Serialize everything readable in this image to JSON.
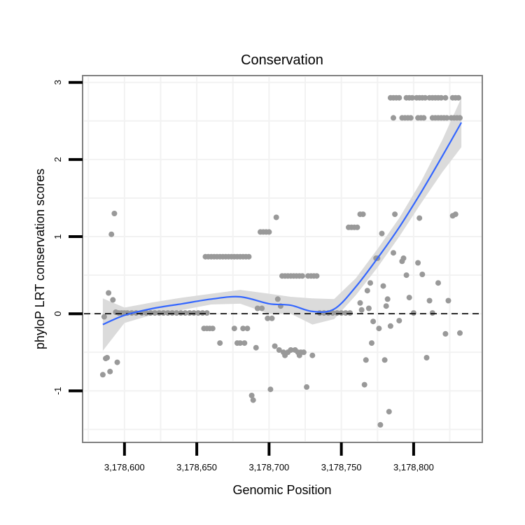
{
  "chart_data": {
    "type": "scatter",
    "title": "Conservation",
    "xlabel": "Genomic Position",
    "ylabel": "phyloP LRT conservation scores",
    "xlim": [
      3178572,
      3178847
    ],
    "ylim": [
      -1.65,
      3.07
    ],
    "x_ticks": [
      3178600,
      3178650,
      3178700,
      3178750,
      3178800
    ],
    "x_tick_labels": [
      "3,178,600",
      "3,178,650",
      "3,178,700",
      "3,178,750",
      "3,178,800"
    ],
    "y_ticks": [
      -1,
      0,
      1,
      2,
      3
    ],
    "y_tick_labels": [
      "-1",
      "0",
      "1",
      "2",
      "3"
    ],
    "reference_line": {
      "y": 0,
      "style": "dashed",
      "color": "#000000"
    },
    "colors": {
      "points": "#999999",
      "smooth": "#3366ff",
      "ribbon": "#d9d9d9",
      "panel_border": "#808080",
      "grid": "#f2f2f2"
    },
    "points": [
      [
        3178585,
        -0.79
      ],
      [
        3178586,
        -0.04
      ],
      [
        3178587,
        -0.58
      ],
      [
        3178588,
        -0.57
      ],
      [
        3178589,
        0.27
      ],
      [
        3178590,
        -0.75
      ],
      [
        3178591,
        1.03
      ],
      [
        3178592,
        0.18
      ],
      [
        3178593,
        1.3
      ],
      [
        3178594,
        0.02
      ],
      [
        3178595,
        -0.63
      ],
      [
        3178596,
        0.01
      ],
      [
        3178598,
        0.01
      ],
      [
        3178600,
        0.01
      ],
      [
        3178602,
        0.01
      ],
      [
        3178605,
        0.01
      ],
      [
        3178608,
        0.01
      ],
      [
        3178612,
        0.01
      ],
      [
        3178615,
        0.01
      ],
      [
        3178618,
        0.01
      ],
      [
        3178621,
        0.01
      ],
      [
        3178624,
        0.01
      ],
      [
        3178627,
        0.01
      ],
      [
        3178630,
        0.01
      ],
      [
        3178633,
        0.01
      ],
      [
        3178636,
        0.01
      ],
      [
        3178639,
        0.01
      ],
      [
        3178642,
        0.01
      ],
      [
        3178645,
        0.01
      ],
      [
        3178648,
        0.01
      ],
      [
        3178651,
        0.01
      ],
      [
        3178654,
        0.01
      ],
      [
        3178657,
        0.01
      ],
      [
        3178655,
        -0.19
      ],
      [
        3178657,
        -0.19
      ],
      [
        3178659,
        -0.19
      ],
      [
        3178661,
        -0.19
      ],
      [
        3178666,
        -0.38
      ],
      [
        3178656,
        0.74
      ],
      [
        3178658,
        0.74
      ],
      [
        3178660,
        0.74
      ],
      [
        3178662,
        0.74
      ],
      [
        3178664,
        0.74
      ],
      [
        3178666,
        0.74
      ],
      [
        3178668,
        0.74
      ],
      [
        3178670,
        0.74
      ],
      [
        3178672,
        0.74
      ],
      [
        3178674,
        0.74
      ],
      [
        3178676,
        0.74
      ],
      [
        3178678,
        0.74
      ],
      [
        3178680,
        0.74
      ],
      [
        3178682,
        0.74
      ],
      [
        3178684,
        0.74
      ],
      [
        3178686,
        0.74
      ],
      [
        3178676,
        -0.19
      ],
      [
        3178678,
        -0.38
      ],
      [
        3178680,
        -0.38
      ],
      [
        3178682,
        -0.19
      ],
      [
        3178683,
        -0.38
      ],
      [
        3178685,
        -0.19
      ],
      [
        3178688,
        -1.06
      ],
      [
        3178689,
        -1.12
      ],
      [
        3178691,
        -0.44
      ],
      [
        3178692,
        0.07
      ],
      [
        3178694,
        1.06
      ],
      [
        3178695,
        0.07
      ],
      [
        3178696,
        1.06
      ],
      [
        3178698,
        1.06
      ],
      [
        3178699,
        -0.06
      ],
      [
        3178700,
        1.06
      ],
      [
        3178701,
        -0.98
      ],
      [
        3178702,
        -0.06
      ],
      [
        3178704,
        -0.42
      ],
      [
        3178705,
        1.25
      ],
      [
        3178706,
        0.19
      ],
      [
        3178707,
        -0.47
      ],
      [
        3178708,
        0.1
      ],
      [
        3178709,
        0.49
      ],
      [
        3178711,
        0.49
      ],
      [
        3178713,
        0.49
      ],
      [
        3178715,
        0.49
      ],
      [
        3178717,
        0.49
      ],
      [
        3178719,
        0.49
      ],
      [
        3178721,
        0.49
      ],
      [
        3178723,
        0.49
      ],
      [
        3178727,
        0.49
      ],
      [
        3178729,
        0.49
      ],
      [
        3178731,
        0.49
      ],
      [
        3178733,
        0.49
      ],
      [
        3178710,
        -0.5
      ],
      [
        3178711,
        -0.54
      ],
      [
        3178713,
        -0.5
      ],
      [
        3178715,
        -0.47
      ],
      [
        3178718,
        -0.47
      ],
      [
        3178720,
        -0.5
      ],
      [
        3178721,
        -0.54
      ],
      [
        3178722,
        -0.5
      ],
      [
        3178724,
        -0.5
      ],
      [
        3178726,
        -0.95
      ],
      [
        3178730,
        -0.54
      ],
      [
        3178735,
        0.01
      ],
      [
        3178738,
        0.01
      ],
      [
        3178741,
        0.01
      ],
      [
        3178744,
        0.01
      ],
      [
        3178747,
        0.01
      ],
      [
        3178750,
        0.01
      ],
      [
        3178753,
        0.01
      ],
      [
        3178756,
        0.01
      ],
      [
        3178755,
        1.12
      ],
      [
        3178757,
        1.12
      ],
      [
        3178759,
        1.12
      ],
      [
        3178761,
        1.12
      ],
      [
        3178763,
        1.29
      ],
      [
        3178765,
        1.29
      ],
      [
        3178763,
        0.14
      ],
      [
        3178764,
        0.05
      ],
      [
        3178766,
        -0.92
      ],
      [
        3178767,
        -0.6
      ],
      [
        3178768,
        0.3
      ],
      [
        3178769,
        0.07
      ],
      [
        3178770,
        0.4
      ],
      [
        3178771,
        -0.38
      ],
      [
        3178772,
        -0.1
      ],
      [
        3178774,
        0.72
      ],
      [
        3178775,
        0.72
      ],
      [
        3178776,
        -0.19
      ],
      [
        3178777,
        -1.44
      ],
      [
        3178778,
        1.04
      ],
      [
        3178779,
        0.36
      ],
      [
        3178780,
        -0.6
      ],
      [
        3178781,
        0.1
      ],
      [
        3178782,
        0.19
      ],
      [
        3178783,
        -1.27
      ],
      [
        3178784,
        -0.16
      ],
      [
        3178786,
        0.79
      ],
      [
        3178787,
        1.29
      ],
      [
        3178790,
        -0.09
      ],
      [
        3178792,
        0.68
      ],
      [
        3178793,
        0.72
      ],
      [
        3178795,
        0.5
      ],
      [
        3178797,
        0.21
      ],
      [
        3178800,
        0.01
      ],
      [
        3178803,
        0.66
      ],
      [
        3178804,
        1.24
      ],
      [
        3178806,
        0.51
      ],
      [
        3178809,
        -0.57
      ],
      [
        3178811,
        0.17
      ],
      [
        3178813,
        0.01
      ],
      [
        3178817,
        0.4
      ],
      [
        3178822,
        -0.26
      ],
      [
        3178824,
        0.17
      ],
      [
        3178827,
        1.27
      ],
      [
        3178829,
        1.29
      ],
      [
        3178832,
        -0.25
      ],
      [
        3178784,
        2.8
      ],
      [
        3178786,
        2.8
      ],
      [
        3178788,
        2.8
      ],
      [
        3178790,
        2.8
      ],
      [
        3178795,
        2.8
      ],
      [
        3178797,
        2.8
      ],
      [
        3178799,
        2.8
      ],
      [
        3178802,
        2.8
      ],
      [
        3178804,
        2.8
      ],
      [
        3178806,
        2.8
      ],
      [
        3178808,
        2.8
      ],
      [
        3178811,
        2.8
      ],
      [
        3178813,
        2.8
      ],
      [
        3178815,
        2.8
      ],
      [
        3178817,
        2.8
      ],
      [
        3178819,
        2.8
      ],
      [
        3178822,
        2.8
      ],
      [
        3178827,
        2.8
      ],
      [
        3178829,
        2.8
      ],
      [
        3178831,
        2.8
      ],
      [
        3178786,
        2.54
      ],
      [
        3178792,
        2.54
      ],
      [
        3178794,
        2.54
      ],
      [
        3178796,
        2.54
      ],
      [
        3178798,
        2.54
      ],
      [
        3178803,
        2.54
      ],
      [
        3178805,
        2.54
      ],
      [
        3178807,
        2.54
      ],
      [
        3178813,
        2.54
      ],
      [
        3178815,
        2.54
      ],
      [
        3178817,
        2.54
      ],
      [
        3178819,
        2.54
      ],
      [
        3178821,
        2.54
      ],
      [
        3178823,
        2.54
      ],
      [
        3178826,
        2.54
      ],
      [
        3178828,
        2.54
      ],
      [
        3178830,
        2.54
      ],
      [
        3178832,
        2.54
      ]
    ],
    "smooth": {
      "x": [
        3178585,
        3178600,
        3178620,
        3178640,
        3178660,
        3178680,
        3178700,
        3178715,
        3178730,
        3178745,
        3178760,
        3178775,
        3178790,
        3178805,
        3178820,
        3178833
      ],
      "fit": [
        -0.14,
        -0.02,
        0.07,
        0.13,
        0.19,
        0.22,
        0.13,
        0.11,
        0.03,
        0.06,
        0.35,
        0.72,
        1.12,
        1.57,
        2.05,
        2.48
      ],
      "lower": [
        -0.48,
        -0.12,
        -0.01,
        0.05,
        0.12,
        0.13,
        0.0,
        0.0,
        -0.14,
        -0.07,
        0.24,
        0.6,
        1.0,
        1.43,
        1.84,
        2.16
      ],
      "upper": [
        0.2,
        0.08,
        0.15,
        0.21,
        0.26,
        0.31,
        0.26,
        0.22,
        0.2,
        0.19,
        0.46,
        0.84,
        1.24,
        1.71,
        2.26,
        2.8
      ]
    }
  }
}
